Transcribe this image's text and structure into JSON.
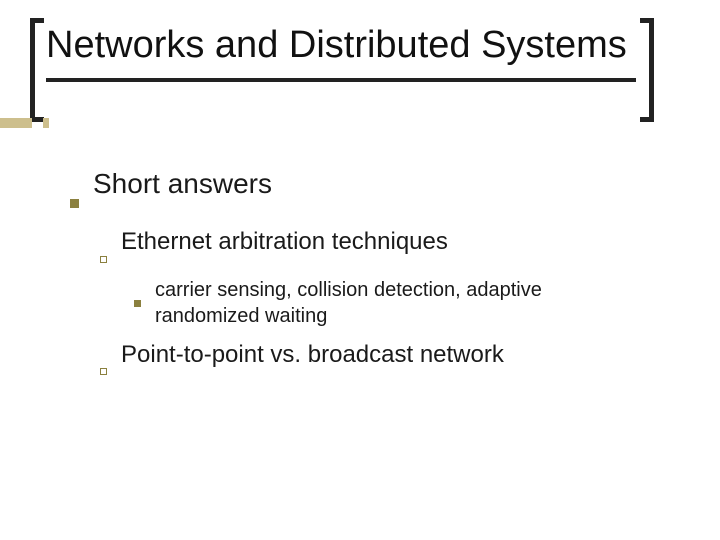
{
  "colors": {
    "text": "#1a1a1a",
    "bullet": "#8b803f",
    "bracket": "#222222",
    "accent_bar": "#cdbf8d",
    "background": "#ffffff"
  },
  "typography": {
    "title_fontsize": 38,
    "lvl1_fontsize": 28,
    "lvl2_fontsize": 24,
    "lvl3_fontsize": 20,
    "font_family": "Arial"
  },
  "title": "Networks and Distributed Systems",
  "body": {
    "lvl1": "Short answers",
    "items": [
      {
        "label": "Ethernet arbitration techniques",
        "sub": "carrier sensing, collision detection, adaptive randomized waiting"
      },
      {
        "label": "Point-to-point vs. broadcast network"
      }
    ]
  }
}
